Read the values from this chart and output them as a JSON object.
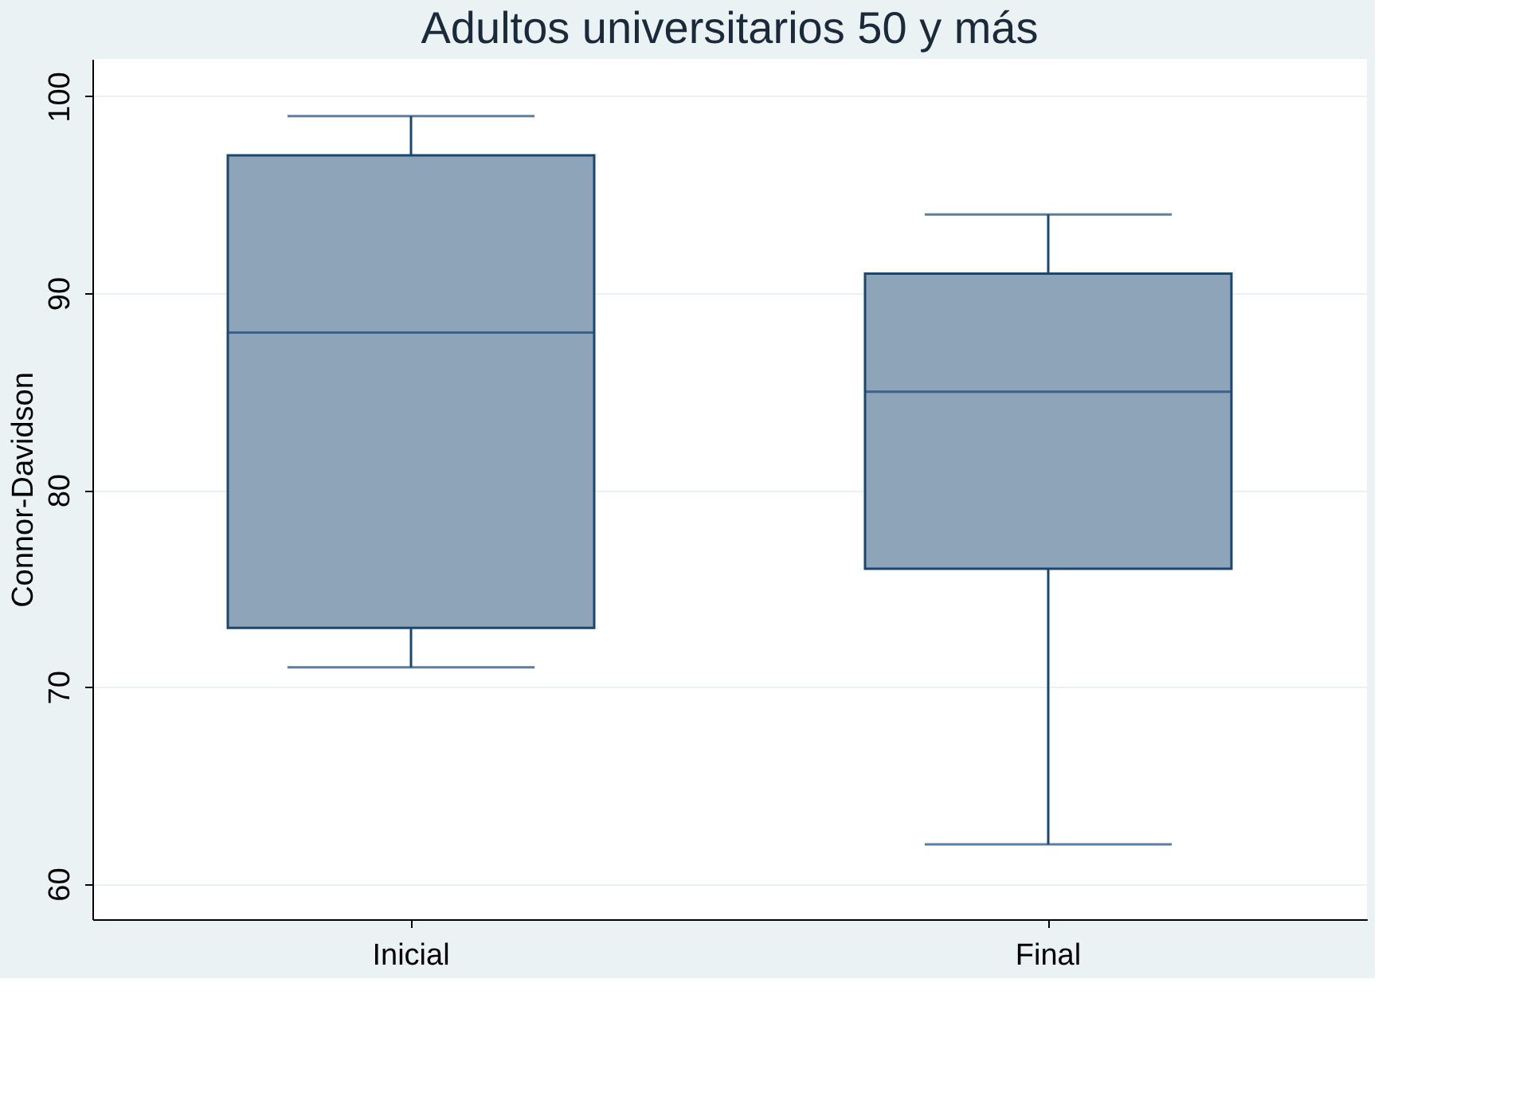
{
  "chart_data": {
    "type": "box",
    "title": "Adultos universitarios 50 y más",
    "ylabel": "Connor-Davidson",
    "categories": [
      "Inicial",
      "Final"
    ],
    "boxes": [
      {
        "low": 71,
        "q1": 73,
        "median": 88,
        "q3": 97,
        "high": 99
      },
      {
        "low": 62,
        "q1": 76,
        "median": 85,
        "q3": 91,
        "high": 94
      }
    ],
    "color": "#8da4b9",
    "ylim": [
      58.2,
      101.9
    ],
    "yticks": [
      60,
      70,
      80,
      90,
      100
    ],
    "grid": "y"
  }
}
